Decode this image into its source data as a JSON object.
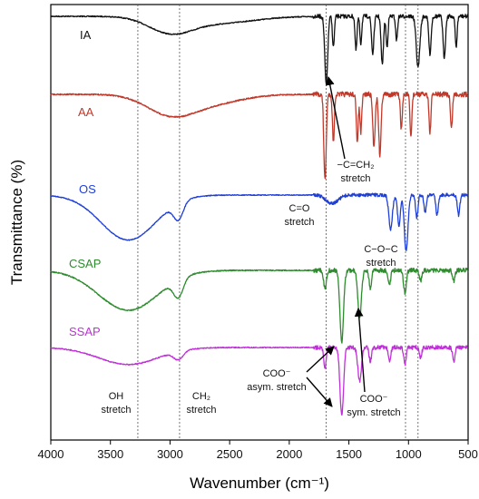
{
  "chart_data": {
    "type": "line",
    "xlabel": "Wavenumber (cm⁻¹)",
    "ylabel": "Transmittance (%)",
    "xlim": [
      4000,
      500
    ],
    "x_ticks": [
      "4000",
      "3500",
      "3000",
      "2500",
      "2000",
      "1500",
      "1000",
      "500"
    ],
    "x_tick_values": [
      4000,
      3500,
      3000,
      2500,
      2000,
      1500,
      1000,
      500
    ],
    "reference_lines": [
      3270,
      2920,
      1690,
      1025,
      920
    ],
    "series": [
      {
        "name": "IA",
        "color": "#111111",
        "baseline": 0.0,
        "broad": [
          [
            3000,
            180,
            0.22
          ],
          [
            2600,
            300,
            0.1
          ]
        ],
        "peaks": [
          [
            1690,
            12,
            1.0
          ],
          [
            1630,
            8,
            0.45
          ],
          [
            1440,
            8,
            0.5
          ],
          [
            1400,
            8,
            0.4
          ],
          [
            1300,
            10,
            0.55
          ],
          [
            1220,
            10,
            0.7
          ],
          [
            1180,
            8,
            0.45
          ],
          [
            1100,
            8,
            0.35
          ],
          [
            920,
            15,
            0.75
          ],
          [
            820,
            10,
            0.55
          ],
          [
            700,
            10,
            0.6
          ],
          [
            600,
            8,
            0.45
          ]
        ]
      },
      {
        "name": "AA",
        "color": "#c0392b",
        "baseline": 0.0,
        "broad": [
          [
            3000,
            200,
            0.22
          ],
          [
            2650,
            250,
            0.1
          ]
        ],
        "peaks": [
          [
            1700,
            10,
            1.0
          ],
          [
            1630,
            8,
            0.55
          ],
          [
            1430,
            8,
            0.55
          ],
          [
            1400,
            8,
            0.45
          ],
          [
            1290,
            10,
            0.6
          ],
          [
            1240,
            10,
            0.7
          ],
          [
            1060,
            8,
            0.4
          ],
          [
            980,
            8,
            0.5
          ],
          [
            820,
            8,
            0.45
          ],
          [
            640,
            8,
            0.4
          ]
        ]
      },
      {
        "name": "OS",
        "color": "#1f3fd6",
        "baseline": 0.0,
        "broad": [
          [
            3350,
            230,
            0.8
          ],
          [
            2930,
            40,
            0.3
          ],
          [
            1640,
            50,
            0.15
          ]
        ],
        "peaks": [
          [
            1150,
            15,
            0.6
          ],
          [
            1080,
            12,
            0.55
          ],
          [
            1020,
            15,
            1.0
          ],
          [
            930,
            10,
            0.4
          ],
          [
            860,
            10,
            0.3
          ],
          [
            760,
            10,
            0.35
          ],
          [
            580,
            10,
            0.35
          ]
        ]
      },
      {
        "name": "CSAP",
        "color": "#2e8b2e",
        "baseline": 0.0,
        "broad": [
          [
            3350,
            250,
            0.55
          ],
          [
            2930,
            40,
            0.25
          ]
        ],
        "peaks": [
          [
            1700,
            12,
            0.25
          ],
          [
            1560,
            15,
            1.0
          ],
          [
            1410,
            15,
            0.65
          ],
          [
            1320,
            10,
            0.25
          ],
          [
            1160,
            10,
            0.2
          ],
          [
            1030,
            12,
            0.3
          ],
          [
            900,
            10,
            0.15
          ],
          [
            620,
            10,
            0.15
          ]
        ]
      },
      {
        "name": "SSAP",
        "color": "#c030d8",
        "baseline": 0.0,
        "broad": [
          [
            3350,
            250,
            0.25
          ],
          [
            2930,
            40,
            0.12
          ]
        ],
        "peaks": [
          [
            1700,
            10,
            0.3
          ],
          [
            1560,
            15,
            1.0
          ],
          [
            1410,
            15,
            0.5
          ],
          [
            1320,
            10,
            0.2
          ],
          [
            1160,
            10,
            0.2
          ],
          [
            1030,
            10,
            0.25
          ],
          [
            900,
            10,
            0.15
          ],
          [
            620,
            10,
            0.2
          ]
        ]
      }
    ],
    "annotations": [
      {
        "id": "oh",
        "lines": [
          "OH",
          "stretch"
        ]
      },
      {
        "id": "ch2",
        "lines": [
          "CH₂",
          "stretch"
        ]
      },
      {
        "id": "co",
        "lines": [
          "C=O",
          "stretch"
        ]
      },
      {
        "id": "cch2",
        "lines": [
          "−C=CH₂",
          "stretch"
        ]
      },
      {
        "id": "coc",
        "lines": [
          "C−O−C",
          "stretch"
        ]
      },
      {
        "id": "asym",
        "lines": [
          "COO⁻",
          "asym. stretch"
        ]
      },
      {
        "id": "sym",
        "lines": [
          "COO⁻",
          "sym. stretch"
        ]
      }
    ],
    "grid": false,
    "legend": "labels next to each trace"
  }
}
